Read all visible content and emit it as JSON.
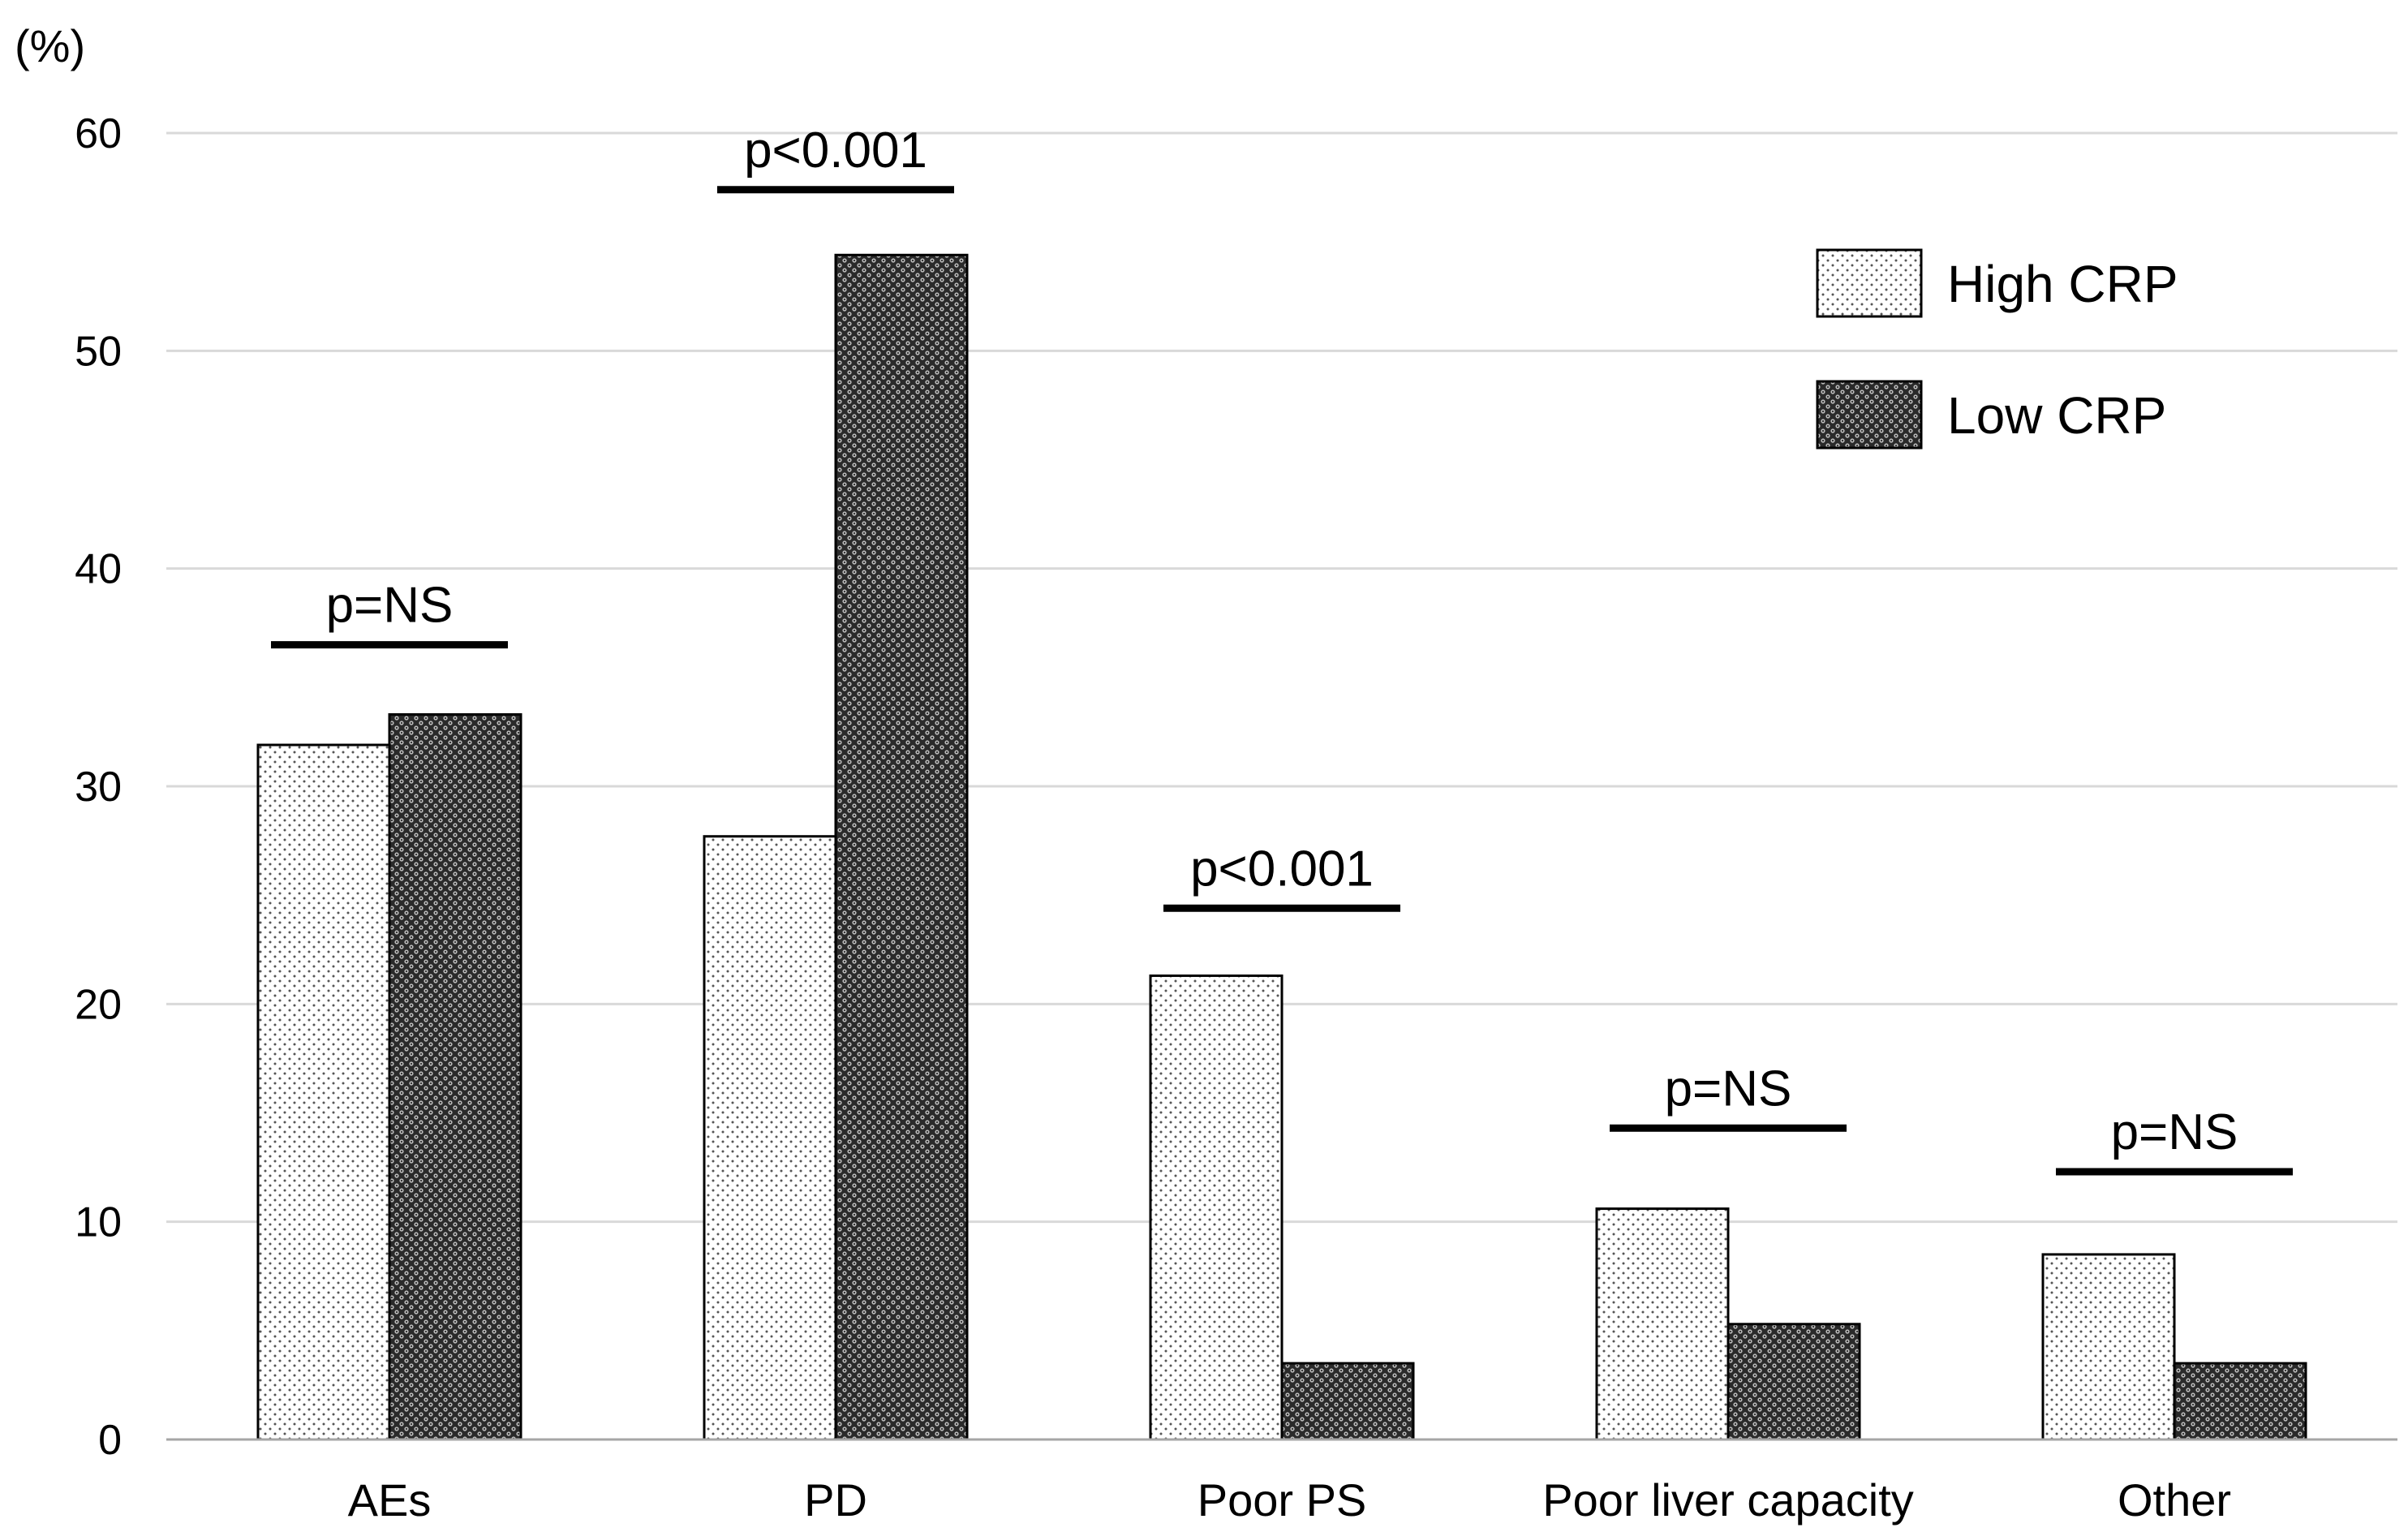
{
  "chart_data": {
    "type": "bar",
    "ylabel": "(%)",
    "ylim": [
      0,
      60
    ],
    "yticks": [
      0,
      10,
      20,
      30,
      40,
      50,
      60
    ],
    "grid": true,
    "legend_position": "top-right",
    "categories": [
      "AEs",
      "PD",
      "Poor PS",
      "Poor liver capacity",
      "Other"
    ],
    "series": [
      {
        "name": "High CRP",
        "pattern": "light-dots",
        "values": [
          31.9,
          27.7,
          21.3,
          10.6,
          8.5
        ]
      },
      {
        "name": "Low CRP",
        "pattern": "dark-crosshatch",
        "values": [
          33.3,
          54.4,
          3.5,
          5.3,
          3.5
        ]
      }
    ],
    "annotations": [
      {
        "category": "AEs",
        "text": "p=NS",
        "at_value": 36.5
      },
      {
        "category": "PD",
        "text": "p<0.001",
        "at_value": 57.4
      },
      {
        "category": "Poor PS",
        "text": "p<0.001",
        "at_value": 24.4
      },
      {
        "category": "Poor liver capacity",
        "text": "p=NS",
        "at_value": 14.3
      },
      {
        "category": "Other",
        "text": "p=NS",
        "at_value": 12.3
      }
    ]
  },
  "colors": {
    "axis": "#000000",
    "grid": "#d9d9d9",
    "high_fill": "#ffffff",
    "high_dot": "#555555",
    "low_fill": "#2a2a2a",
    "low_highlight": "#bdbdbd"
  }
}
